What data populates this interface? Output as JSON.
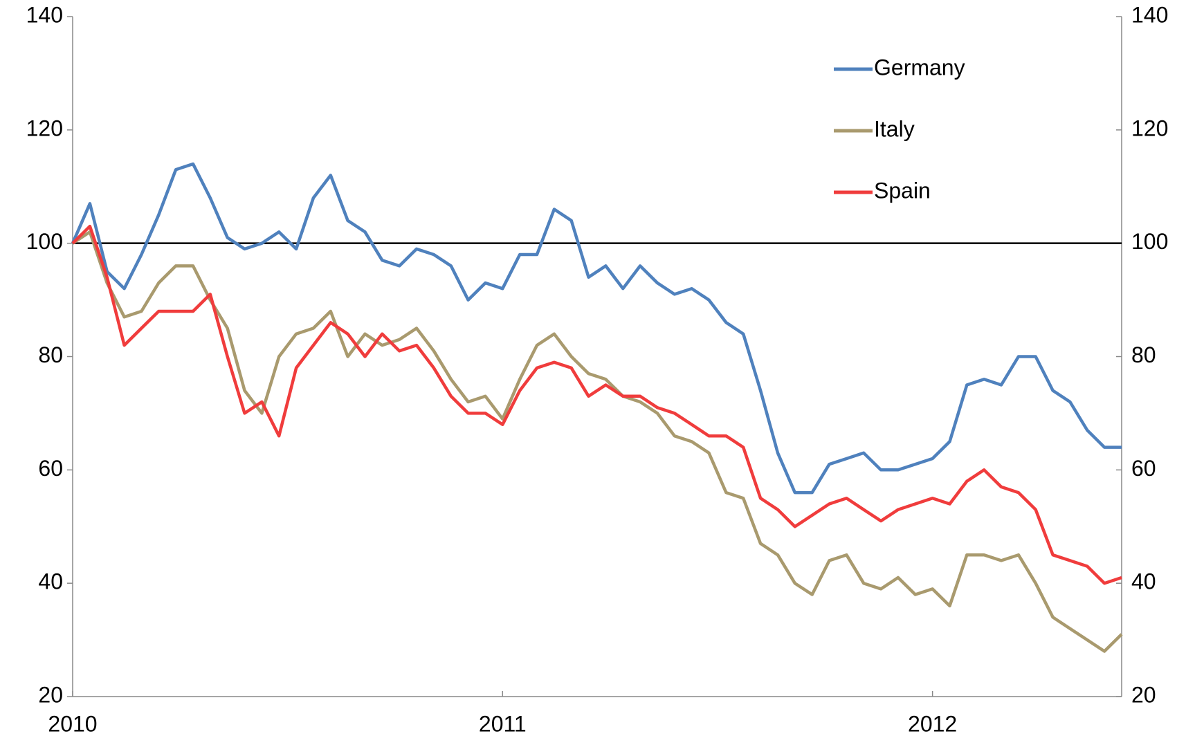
{
  "chart_data": {
    "type": "line",
    "x": [
      2010.0,
      2010.04,
      2010.08,
      2010.12,
      2010.16,
      2010.2,
      2010.24,
      2010.28,
      2010.32,
      2010.36,
      2010.4,
      2010.44,
      2010.48,
      2010.52,
      2010.56,
      2010.6,
      2010.64,
      2010.68,
      2010.72,
      2010.76,
      2010.8,
      2010.84,
      2010.88,
      2010.92,
      2010.96,
      2011.0,
      2011.04,
      2011.08,
      2011.12,
      2011.16,
      2011.2,
      2011.24,
      2011.28,
      2011.32,
      2011.36,
      2011.4,
      2011.44,
      2011.48,
      2011.52,
      2011.56,
      2011.6,
      2011.64,
      2011.68,
      2011.72,
      2011.76,
      2011.8,
      2011.84,
      2011.88,
      2011.92,
      2011.96,
      2012.0,
      2012.04,
      2012.08,
      2012.12,
      2012.16,
      2012.2,
      2012.24,
      2012.28,
      2012.32,
      2012.36,
      2012.4,
      2012.44
    ],
    "series": [
      {
        "name": "Germany",
        "color": "#4f81bd",
        "values": [
          100,
          107,
          95,
          92,
          98,
          105,
          113,
          114,
          108,
          101,
          99,
          100,
          102,
          99,
          108,
          112,
          104,
          102,
          97,
          96,
          99,
          98,
          96,
          90,
          93,
          92,
          98,
          98,
          106,
          104,
          94,
          96,
          92,
          96,
          93,
          91,
          92,
          90,
          86,
          84,
          74,
          63,
          56,
          56,
          61,
          62,
          63,
          60,
          60,
          61,
          62,
          65,
          75,
          76,
          75,
          80,
          80,
          74,
          72,
          67,
          64,
          64
        ]
      },
      {
        "name": "Italy",
        "color": "#a99a6e",
        "values": [
          100,
          102,
          93,
          87,
          88,
          93,
          96,
          96,
          90,
          85,
          74,
          70,
          80,
          84,
          85,
          88,
          80,
          84,
          82,
          83,
          85,
          81,
          76,
          72,
          73,
          69,
          76,
          82,
          84,
          80,
          77,
          76,
          73,
          72,
          70,
          66,
          65,
          63,
          56,
          55,
          47,
          45,
          40,
          38,
          44,
          45,
          40,
          39,
          41,
          38,
          39,
          36,
          45,
          45,
          44,
          45,
          40,
          34,
          32,
          30,
          28,
          31
        ]
      },
      {
        "name": "Spain",
        "color": "#f03c3c",
        "values": [
          100,
          103,
          94,
          82,
          85,
          88,
          88,
          88,
          91,
          80,
          70,
          72,
          66,
          78,
          82,
          86,
          84,
          80,
          84,
          81,
          82,
          78,
          73,
          70,
          70,
          68,
          74,
          78,
          79,
          78,
          73,
          75,
          73,
          73,
          71,
          70,
          68,
          66,
          66,
          64,
          55,
          53,
          50,
          52,
          54,
          55,
          53,
          51,
          53,
          54,
          55,
          54,
          58,
          60,
          57,
          56,
          53,
          45,
          44,
          43,
          40,
          41
        ]
      }
    ],
    "xlim": [
      2010,
      2012.44
    ],
    "xticks": [
      2010,
      2011,
      2012
    ],
    "ylim": [
      20,
      140
    ],
    "yticks": [
      20,
      40,
      60,
      80,
      100,
      120,
      140
    ],
    "y2lim": [
      20,
      140
    ],
    "y2ticks": [
      20,
      40,
      60,
      80,
      100,
      120,
      140
    ],
    "reference_line": 100,
    "legend": "top-right"
  }
}
